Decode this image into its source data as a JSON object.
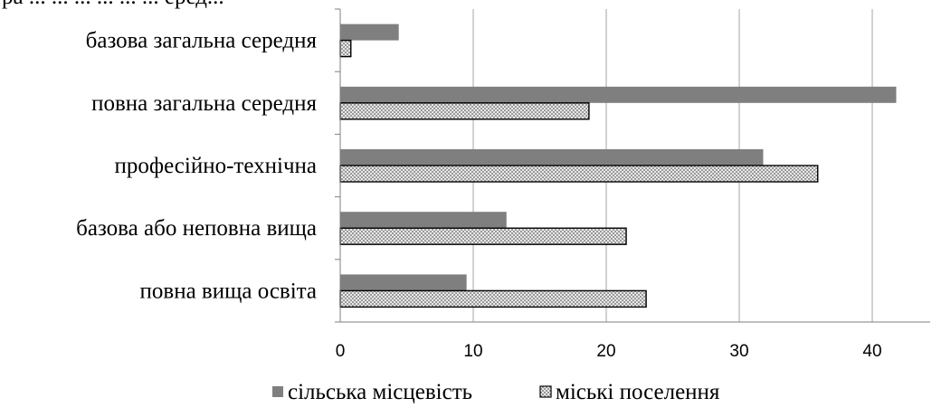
{
  "header": {
    "cropped_text": "ра ... ... ... ... ... ... еред..."
  },
  "chart_data": {
    "type": "bar",
    "orientation": "horizontal",
    "categories": [
      "базова загальна середня",
      "повна загальна середня",
      "професійно-технічна",
      "базова або неповна вища",
      "повна вища освіта"
    ],
    "series": [
      {
        "name": "сільська місцевість",
        "values": [
          4.4,
          41.8,
          31.8,
          12.5,
          9.5
        ],
        "color": "#7f7f7f",
        "pattern": "solid"
      },
      {
        "name": "міські поселення",
        "values": [
          0.8,
          18.7,
          35.9,
          21.5,
          23.0
        ],
        "color": "#ffffff",
        "pattern": "crosshatch"
      }
    ],
    "x_ticks": [
      "0",
      "10",
      "20",
      "30",
      "40"
    ],
    "xlim": [
      0,
      44
    ],
    "grid": "vertical",
    "legend_position": "bottom"
  }
}
